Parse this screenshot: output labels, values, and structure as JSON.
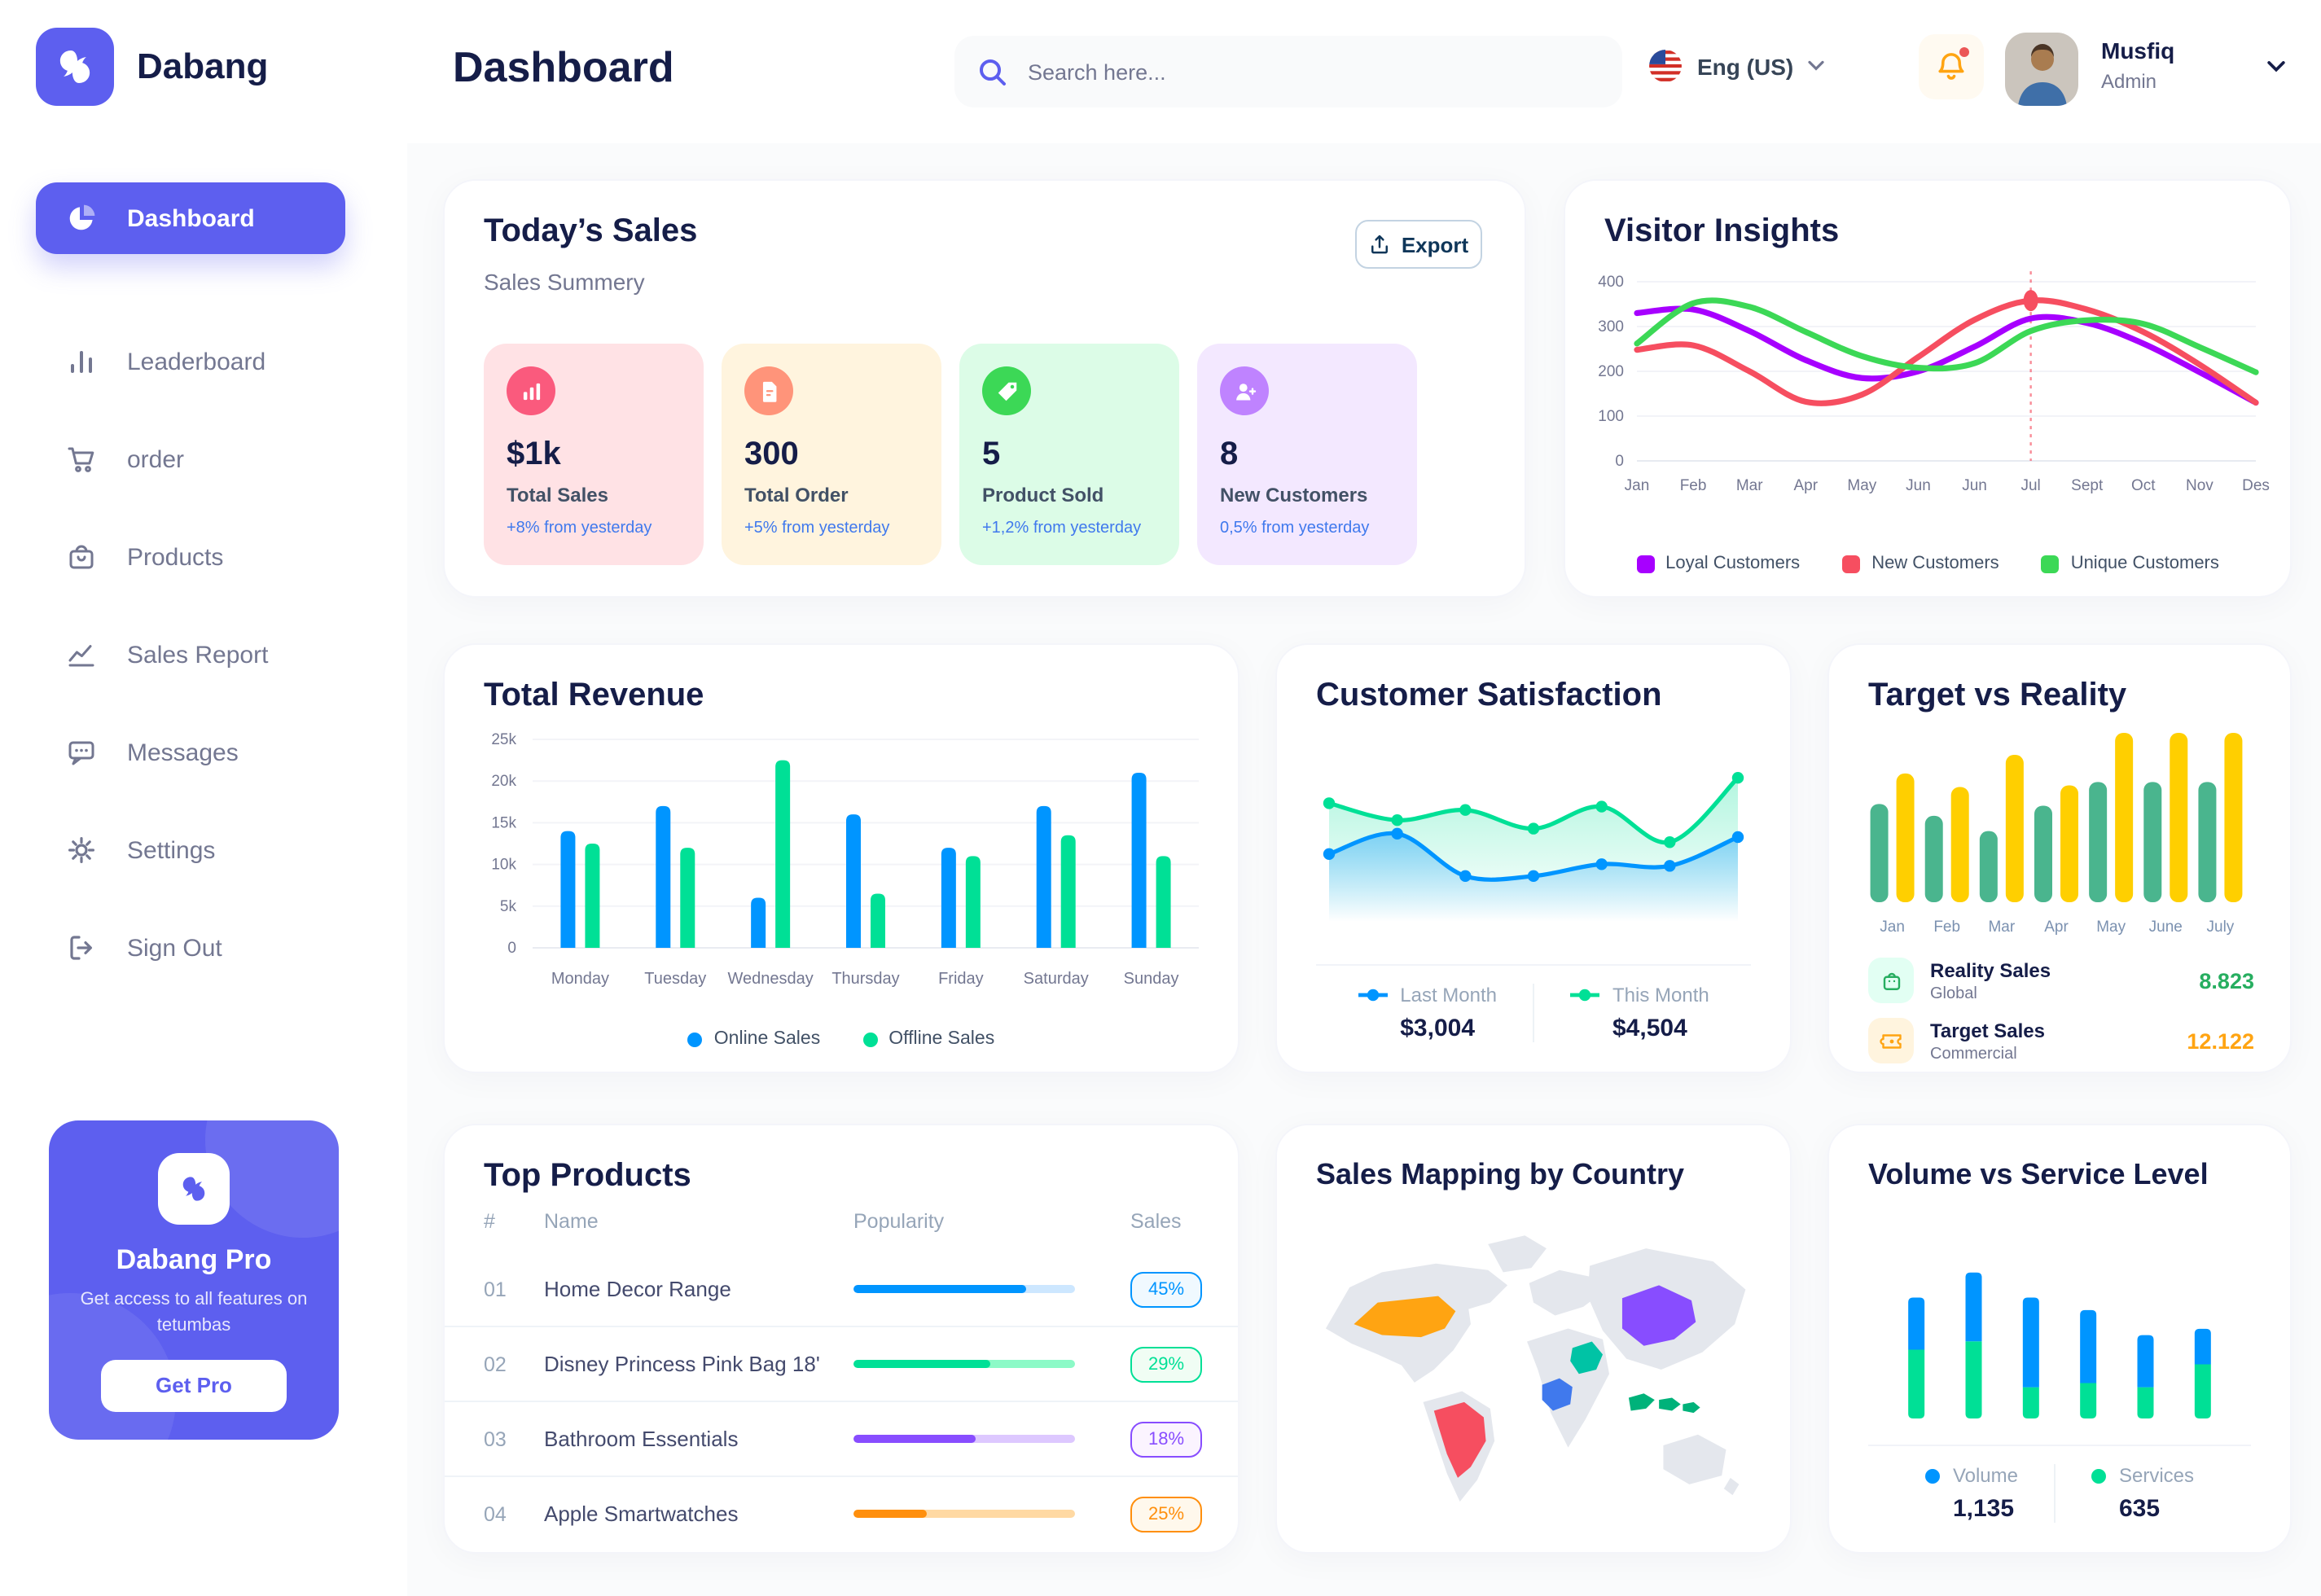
{
  "brand": {
    "name": "Dabang"
  },
  "header": {
    "title": "Dashboard",
    "search_placeholder": "Search here...",
    "language": "Eng (US)",
    "user": {
      "name": "Musfiq",
      "role": "Admin"
    }
  },
  "sidebar": {
    "items": [
      {
        "label": "Dashboard",
        "icon": "pie-chart",
        "active": true
      },
      {
        "label": "Leaderboard",
        "icon": "leaderboard",
        "active": false
      },
      {
        "label": "order",
        "icon": "cart",
        "active": false
      },
      {
        "label": "Products",
        "icon": "bag",
        "active": false
      },
      {
        "label": "Sales Report",
        "icon": "trend",
        "active": false
      },
      {
        "label": "Messages",
        "icon": "chat",
        "active": false
      },
      {
        "label": "Settings",
        "icon": "gear",
        "active": false
      },
      {
        "label": "Sign Out",
        "icon": "signout",
        "active": false
      }
    ],
    "pro": {
      "title": "Dabang Pro",
      "subtitle": "Get access to all features on tetumbas",
      "cta": "Get Pro"
    }
  },
  "today_sales": {
    "title": "Today’s Sales",
    "subtitle": "Sales Summery",
    "export_label": "Export",
    "cards": [
      {
        "value": "$1k",
        "label": "Total Sales",
        "delta": "+8% from yesterday",
        "bg": "#FFE2E5",
        "icon_bg": "#FA5A7D",
        "icon": "bar-chart"
      },
      {
        "value": "300",
        "label": "Total Order",
        "delta": "+5% from yesterday",
        "bg": "#FFF4DE",
        "icon_bg": "#FF947A",
        "icon": "file"
      },
      {
        "value": "5",
        "label": "Product Sold",
        "delta": "+1,2% from yesterday",
        "bg": "#DCFCE7",
        "icon_bg": "#3CD856",
        "icon": "tag"
      },
      {
        "value": "8",
        "label": "New Customers",
        "delta": "0,5% from yesterday",
        "bg": "#F3E8FF",
        "icon_bg": "#BF83FF",
        "icon": "user-plus"
      }
    ]
  },
  "chart_data": [
    {
      "id": "visitor_insights",
      "type": "line",
      "title": "Visitor Insights",
      "x": [
        "Jan",
        "Feb",
        "Mar",
        "Apr",
        "May",
        "Jun",
        "Jun",
        "Jul",
        "Sept",
        "Oct",
        "Nov",
        "Des"
      ],
      "ylim": [
        0,
        400
      ],
      "yticks": [
        0,
        100,
        200,
        300,
        400
      ],
      "grid": true,
      "legend_position": "bottom",
      "series": [
        {
          "name": "Loyal Customers",
          "color": "#A700FF",
          "values": [
            330,
            338,
            290,
            225,
            185,
            200,
            255,
            318,
            308,
            262,
            198,
            130
          ]
        },
        {
          "name": "New Customers",
          "color": "#F64E60",
          "values": [
            248,
            258,
            200,
            132,
            148,
            232,
            315,
            358,
            338,
            288,
            215,
            130
          ]
        },
        {
          "name": "Unique Customers",
          "color": "#3CD856",
          "values": [
            262,
            352,
            344,
            288,
            234,
            208,
            218,
            290,
            314,
            306,
            254,
            198
          ]
        }
      ],
      "annotation": {
        "x_index": 7,
        "value": 358,
        "series": "New Customers"
      }
    },
    {
      "id": "total_revenue",
      "type": "bar",
      "title": "Total Revenue",
      "categories": [
        "Monday",
        "Tuesday",
        "Wednesday",
        "Thursday",
        "Friday",
        "Saturday",
        "Sunday"
      ],
      "ylim": [
        0,
        25000
      ],
      "yticks": [
        0,
        5000,
        10000,
        15000,
        20000,
        25000
      ],
      "ytick_labels": [
        "0",
        "5k",
        "10k",
        "15k",
        "20k",
        "25k"
      ],
      "grid": true,
      "legend_position": "bottom",
      "series": [
        {
          "name": "Online Sales",
          "color": "#0095FF",
          "values": [
            14000,
            17000,
            6000,
            16000,
            12000,
            17000,
            21000
          ]
        },
        {
          "name": "Offline Sales",
          "color": "#00E096",
          "values": [
            12500,
            12000,
            22500,
            6500,
            11000,
            13500,
            11000
          ]
        }
      ]
    },
    {
      "id": "customer_satisfaction",
      "type": "area",
      "title": "Customer Satisfaction",
      "x": [
        1,
        2,
        3,
        4,
        5,
        6,
        7
      ],
      "ylim": [
        0,
        100
      ],
      "grid": false,
      "legend_position": "bottom",
      "series": [
        {
          "name": "This Month",
          "color": "#00E096",
          "total": "$4,504",
          "values": [
            70,
            60,
            66,
            55,
            68,
            47,
            85
          ]
        },
        {
          "name": "Last Month",
          "color": "#0095FF",
          "total": "$3,004",
          "values": [
            40,
            52,
            27,
            27,
            34,
            33,
            50
          ]
        }
      ],
      "legend": [
        {
          "name": "Last Month",
          "color": "#0095FF",
          "total": "$3,004"
        },
        {
          "name": "This Month",
          "color": "#00E096",
          "total": "$4,504"
        }
      ]
    },
    {
      "id": "target_vs_reality",
      "type": "bar",
      "title": "Target vs Reality",
      "categories": [
        "Jan",
        "Feb",
        "Mar",
        "Apr",
        "May",
        "June",
        "July"
      ],
      "ylim": [
        0,
        100
      ],
      "grid": false,
      "series": [
        {
          "name": "Reality Sales",
          "color": "#4AB58E",
          "values": [
            58,
            51,
            42,
            57,
            71,
            71,
            71
          ]
        },
        {
          "name": "Target Sales",
          "color": "#FFCF00",
          "values": [
            76,
            68,
            87,
            69,
            100,
            100,
            100
          ]
        }
      ],
      "legend": [
        {
          "title": "Reality Sales",
          "subtitle": "Global",
          "value": "8.823",
          "value_color": "#27AE60",
          "icon": "shopping-bag",
          "icon_bg": "#E2FFF3",
          "icon_color": "#27AE60"
        },
        {
          "title": "Target Sales",
          "subtitle": "Commercial",
          "value": "12.122",
          "value_color": "#FFA412",
          "icon": "ticket",
          "icon_bg": "#FFF4DE",
          "icon_color": "#FFA412"
        }
      ]
    },
    {
      "id": "volume_vs_service",
      "type": "stacked-bar",
      "title": "Volume vs Service Level",
      "categories": [
        "1",
        "2",
        "3",
        "4",
        "5",
        "6"
      ],
      "ylim": [
        0,
        100
      ],
      "grid": false,
      "series": [
        {
          "name": "Volume",
          "color": "#0095FF",
          "total": "1,135",
          "values": [
            25,
            33,
            43,
            35,
            25,
            17
          ]
        },
        {
          "name": "Services",
          "color": "#00E096",
          "total": "635",
          "values": [
            33,
            37,
            15,
            17,
            15,
            26
          ]
        }
      ]
    }
  ],
  "top_products": {
    "title": "Top Products",
    "headers": [
      "#",
      "Name",
      "Popularity",
      "Sales"
    ],
    "rows": [
      {
        "num": "01",
        "name": "Home Decor Range",
        "popularity": 78,
        "sales": "45%",
        "color": "#0095FF",
        "track": "#CDE7FF",
        "badge_bg": "#F0F9FF"
      },
      {
        "num": "02",
        "name": "Disney Princess Pink Bag 18'",
        "popularity": 62,
        "sales": "29%",
        "color": "#00E096",
        "track": "#8CFAC7",
        "badge_bg": "#F0FDF4"
      },
      {
        "num": "03",
        "name": "Bathroom Essentials",
        "popularity": 55,
        "sales": "18%",
        "color": "#884DFF",
        "track": "#DDC8FF",
        "badge_bg": "#FBF4FF"
      },
      {
        "num": "04",
        "name": "Apple Smartwatches",
        "popularity": 33,
        "sales": "25%",
        "color": "#FF8F0D",
        "track": "#FFD9A3",
        "badge_bg": "#FFF8EC"
      }
    ]
  },
  "sales_map": {
    "title": "Sales Mapping by Country",
    "countries": [
      {
        "key": "usa",
        "name": "United States",
        "color": "#FFA412"
      },
      {
        "key": "brazil",
        "name": "Brazil",
        "color": "#F64E60"
      },
      {
        "key": "saudi-arabia",
        "name": "Saudi Arabia",
        "color": "#00C3A5"
      },
      {
        "key": "congo",
        "name": "Congo",
        "color": "#4079ED"
      },
      {
        "key": "china",
        "name": "China",
        "color": "#884DFF"
      },
      {
        "key": "indonesia",
        "name": "Indonesia",
        "color": "#00B27A"
      }
    ]
  }
}
